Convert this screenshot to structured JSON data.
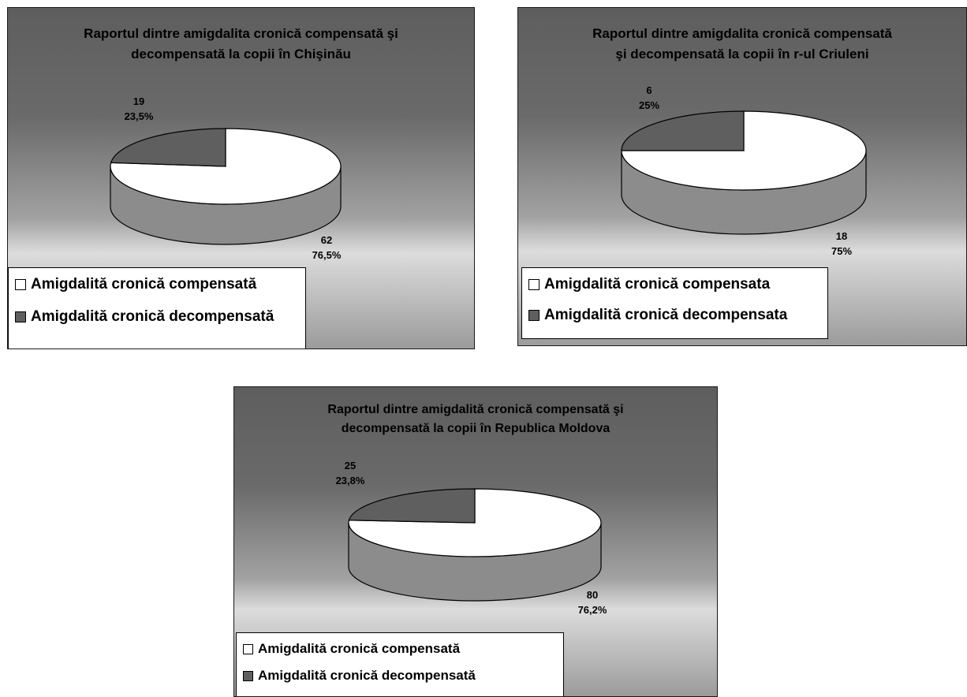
{
  "colors": {
    "compensata": "#ffffff",
    "decompensata": "#5f5f5f",
    "side_wall": "#8c8c8c",
    "outline": "#000000"
  },
  "chart_data": [
    {
      "type": "pie",
      "title": "Raportul dintre amigdalita cronică compensată şi\ndecompensată la copii în Chişinău",
      "legend_position": "bottom-left",
      "legend": [
        "Amigdalită cronică compensată",
        "Amigdalită cronică decompensată"
      ],
      "slices": [
        {
          "name": "Amigdalită cronică compensată",
          "value": 62,
          "percent": "76,5%"
        },
        {
          "name": "Amigdalită cronică decompensată",
          "value": 19,
          "percent": "23,5%"
        }
      ]
    },
    {
      "type": "pie",
      "title": "Raportul dintre amigdalita cronică compensată\nşi decompensată la copii în r-ul Criuleni",
      "legend_position": "bottom-left",
      "legend": [
        "Amigdalită cronică compensata",
        "Amigdalită cronică decompensata"
      ],
      "slices": [
        {
          "name": "Amigdalită cronică compensata",
          "value": 18,
          "percent": "75%"
        },
        {
          "name": "Amigdalită cronică decompensata",
          "value": 6,
          "percent": "25%"
        }
      ]
    },
    {
      "type": "pie",
      "title": "Raportul dintre amigdalită cronică compensată şi\ndecompensată la copii în Republica Moldova",
      "legend_position": "bottom-left",
      "legend": [
        "Amigdalită cronică compensată",
        "Amigdalită cronică decompensată"
      ],
      "slices": [
        {
          "name": "Amigdalită cronică compensată",
          "value": 80,
          "percent": "76,2%"
        },
        {
          "name": "Amigdalită cronică decompensată",
          "value": 25,
          "percent": "23,8%"
        }
      ]
    }
  ]
}
